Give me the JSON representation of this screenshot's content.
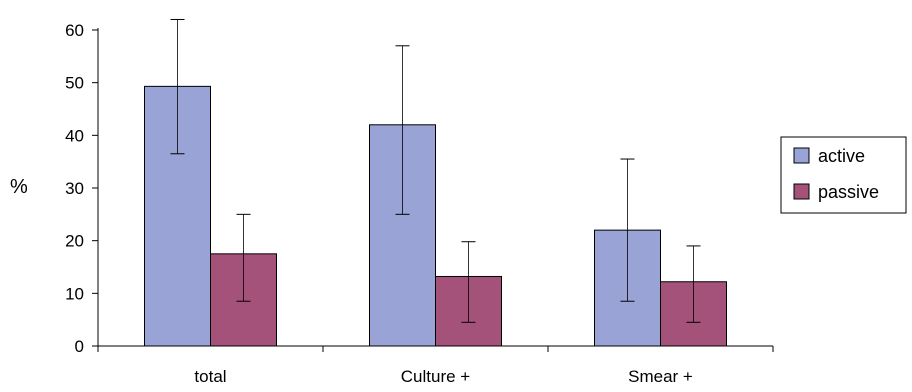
{
  "chart_data": {
    "type": "bar",
    "title": "",
    "xlabel": "",
    "ylabel": "%",
    "ylim": [
      0,
      60
    ],
    "yticks": [
      0,
      10,
      20,
      30,
      40,
      50,
      60
    ],
    "grid": false,
    "legend_position": "right",
    "categories": [
      "total",
      "Culture +",
      "Smear +"
    ],
    "series": [
      {
        "name": "active",
        "color": "#99a3d6",
        "values": [
          49.3,
          42.0,
          22.0
        ],
        "error_low": [
          36.5,
          25.0,
          8.5
        ],
        "error_high": [
          62.0,
          57.0,
          35.5
        ]
      },
      {
        "name": "passive",
        "color": "#a4527a",
        "values": [
          17.5,
          13.2,
          12.2
        ],
        "error_low": [
          8.5,
          4.5,
          4.5
        ],
        "error_high": [
          25.0,
          19.8,
          19.0
        ]
      }
    ]
  }
}
